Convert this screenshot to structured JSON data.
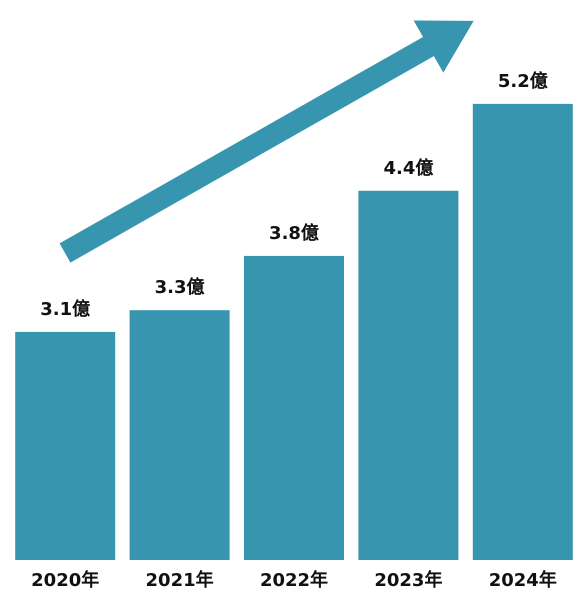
{
  "chart_data": {
    "type": "bar",
    "categories": [
      "2020年",
      "2021年",
      "2022年",
      "2023年",
      "2024年"
    ],
    "values": [
      3.1,
      3.3,
      3.8,
      4.4,
      5.2
    ],
    "value_labels": [
      "3.1億",
      "3.3億",
      "3.8億",
      "4.4億",
      "5.2億"
    ],
    "color": "#3795b0",
    "ylim": [
      1,
      6
    ]
  }
}
